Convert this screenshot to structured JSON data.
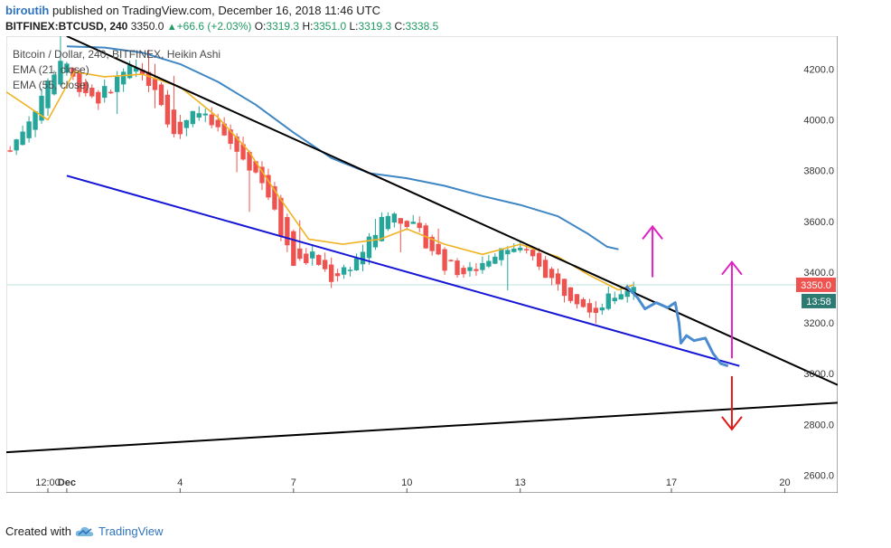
{
  "header": {
    "author": "biroutih",
    "published_text": "published on TradingView.com, December 16, 2018 11:46 UTC",
    "symbol": "BITFINEX:BTCUSD, 240",
    "last": "3350.0",
    "change": "+66.6 (+2.03%)",
    "open_label": "O:",
    "open": "3319.3",
    "high_label": "H:",
    "high": "3351.0",
    "low_label": "L:",
    "low": "3319.3",
    "close_label": "C:",
    "close": "3338.5"
  },
  "overlay": {
    "series_title": "Bitcoin / Dollar, 240, BITFINEX, Heikin Ashi",
    "ema21": "EMA (21, close)",
    "ema55": "EMA (55, close)"
  },
  "price_tag": {
    "value": "3350.0",
    "countdown": "13:58"
  },
  "footer": {
    "created_with": "Created with",
    "brand": "TradingView"
  },
  "colors": {
    "bull": "#26a69a",
    "bear": "#ef5350",
    "ema21": "#f0b323",
    "ema55": "#3f86c4",
    "trendline": "#000000",
    "channel": "#1515d6",
    "projection": "#4b8bd0",
    "arrow_up": "#e020c0",
    "arrow_down": "#e01818",
    "price_tag": "#ef5350",
    "countdown_tag": "#2c7a72"
  },
  "chart_data": {
    "type": "candlestick",
    "chart_style": "Heikin Ashi",
    "y_axis": {
      "ticks": [
        2600,
        2800,
        3000,
        3200,
        3400,
        3600,
        3800,
        4000,
        4200
      ],
      "range": [
        2530,
        4330
      ]
    },
    "x_axis": {
      "ticks": [
        {
          "label": "12:00",
          "day": 0.5
        },
        {
          "label": "Dec",
          "day": 1
        },
        {
          "label": "4",
          "day": 4
        },
        {
          "label": "7",
          "day": 7
        },
        {
          "label": "10",
          "day": 10
        },
        {
          "label": "13",
          "day": 13
        },
        {
          "label": "17",
          "day": 17
        },
        {
          "label": "20",
          "day": 20
        }
      ],
      "range_days": [
        -0.6,
        21.4
      ]
    },
    "ohlc_anchor_days": [
      -0.5,
      0.2,
      0.9,
      1.2,
      1.8,
      2.6,
      3.3,
      3.9,
      4.3,
      5.0,
      5.7,
      6.2,
      6.6,
      7.0,
      7.5,
      8.0,
      8.6,
      9.0,
      9.5,
      10.0,
      10.5,
      11.0,
      11.6,
      12.1,
      12.6,
      13.0,
      13.5,
      14.0,
      14.5,
      15.0,
      15.5,
      16.0
    ],
    "ohlc_anchor_prices": [
      3880,
      4060,
      4260,
      4150,
      4080,
      4200,
      4150,
      3920,
      4050,
      3960,
      3840,
      3760,
      3580,
      3430,
      3460,
      3380,
      3440,
      3520,
      3640,
      3600,
      3520,
      3430,
      3390,
      3450,
      3520,
      3480,
      3430,
      3340,
      3300,
      3250,
      3310,
      3350
    ],
    "ema21": {
      "days": [
        -0.6,
        0.5,
        1.2,
        2.0,
        3.0,
        4.0,
        5.0,
        5.8,
        6.6,
        7.4,
        8.3,
        9.3,
        10.0,
        11.0,
        12.0,
        13.0,
        14.0,
        14.8,
        15.6,
        16.0
      ],
      "values": [
        4110,
        4000,
        4190,
        4170,
        4180,
        4130,
        4010,
        3880,
        3700,
        3530,
        3510,
        3530,
        3570,
        3510,
        3470,
        3510,
        3460,
        3390,
        3330,
        3350
      ]
    },
    "ema55": {
      "days": [
        1.0,
        2.0,
        3.0,
        4.0,
        5.0,
        6.0,
        7.0,
        8.0,
        9.0,
        10.0,
        11.0,
        12.0,
        13.0,
        14.0,
        14.8,
        15.3,
        15.6
      ],
      "values": [
        4290,
        4285,
        4265,
        4220,
        4150,
        4060,
        3950,
        3850,
        3790,
        3770,
        3740,
        3700,
        3665,
        3620,
        3550,
        3500,
        3490
      ]
    },
    "projection_path": {
      "days": [
        15.8,
        16.1,
        16.3,
        16.6,
        16.9,
        17.1,
        17.2,
        17.25,
        17.4,
        17.6,
        17.9,
        18.1,
        18.3,
        18.5
      ],
      "values": [
        3345,
        3300,
        3255,
        3280,
        3260,
        3280,
        3200,
        3120,
        3150,
        3130,
        3140,
        3080,
        3040,
        3030
      ]
    },
    "drawings": {
      "resistance": {
        "from": {
          "day": 1.0,
          "price": 4330
        },
        "to": {
          "day": 21.4,
          "price": 2955
        }
      },
      "support": {
        "from": {
          "day": -0.6,
          "price": 2690
        },
        "to": {
          "day": 21.4,
          "price": 2885
        }
      },
      "channel": {
        "from": {
          "day": 1.0,
          "price": 3780
        },
        "to": {
          "day": 18.8,
          "price": 3030
        }
      },
      "arrows": [
        {
          "dir": "up",
          "day": 16.5,
          "from": 3380,
          "to": 3580
        },
        {
          "dir": "up",
          "day": 18.6,
          "from": 3060,
          "to": 3440
        },
        {
          "dir": "down",
          "day": 18.6,
          "from": 2990,
          "to": 2780
        }
      ]
    }
  }
}
